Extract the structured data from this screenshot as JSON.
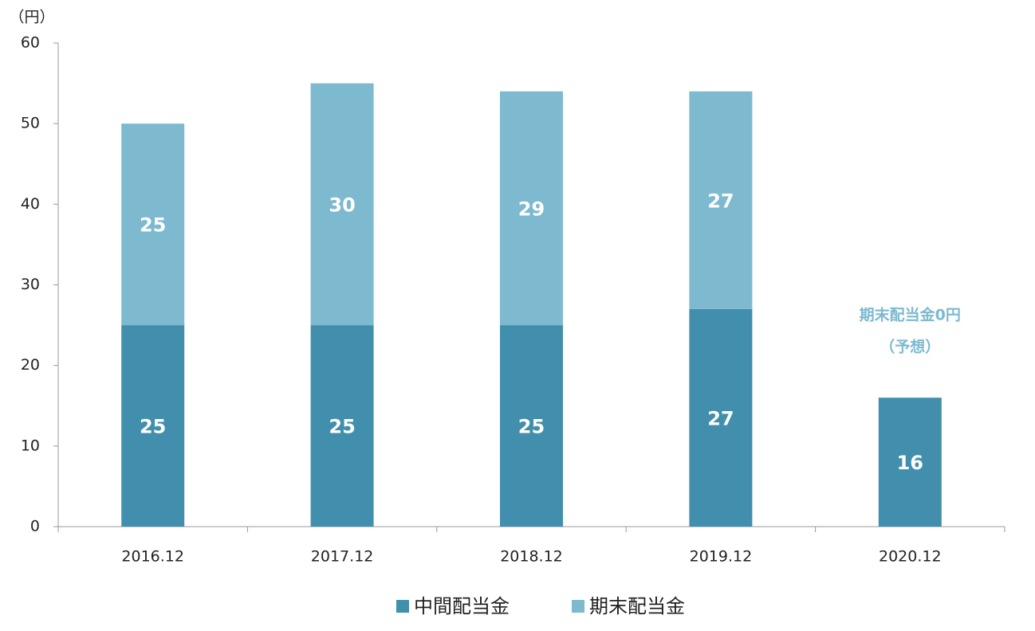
{
  "chart_data": {
    "type": "stacked-bar",
    "y_unit": "（円）",
    "categories": [
      "2016.12",
      "2017.12",
      "2018.12",
      "2019.12",
      "2020.12"
    ],
    "series": [
      {
        "name": "中間配当金",
        "color": "#428fad",
        "values": [
          25,
          25,
          25,
          27,
          16
        ]
      },
      {
        "name": "期末配当金",
        "color": "#7db9cf",
        "values": [
          25,
          30,
          29,
          27,
          null
        ]
      }
    ],
    "annotations": [
      "期末配当金0円",
      "（予想）"
    ],
    "annotation_color": "#7db9cf",
    "ylim": [
      0,
      60
    ],
    "yticks": [
      0,
      10,
      20,
      30,
      40,
      50,
      60
    ],
    "grid": false,
    "legend": "bottom"
  }
}
